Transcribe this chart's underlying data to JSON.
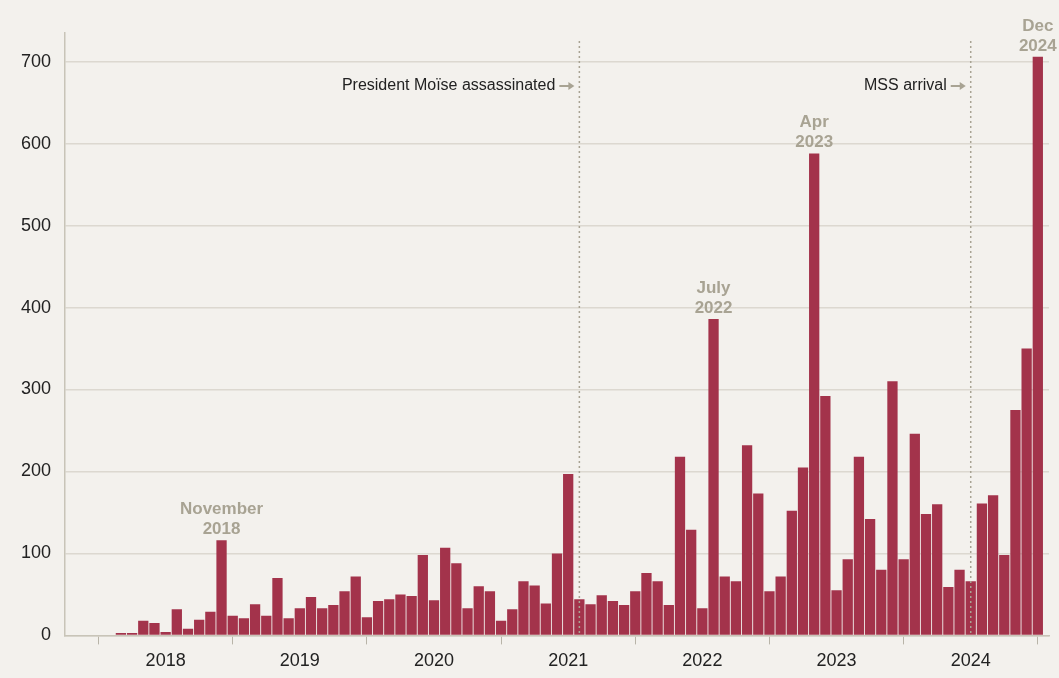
{
  "chart_data": {
    "type": "bar",
    "color": "#a3334b",
    "x": [
      "2018-02",
      "2018-03",
      "2018-04",
      "2018-05",
      "2018-06",
      "2018-07",
      "2018-08",
      "2018-09",
      "2018-10",
      "2018-11",
      "2018-12",
      "2019-01",
      "2019-02",
      "2019-03",
      "2019-04",
      "2019-05",
      "2019-06",
      "2019-07",
      "2019-08",
      "2019-09",
      "2019-10",
      "2019-11",
      "2019-12",
      "2020-01",
      "2020-02",
      "2020-03",
      "2020-04",
      "2020-05",
      "2020-06",
      "2020-07",
      "2020-08",
      "2020-09",
      "2020-10",
      "2020-11",
      "2020-12",
      "2021-01",
      "2021-02",
      "2021-03",
      "2021-04",
      "2021-05",
      "2021-06",
      "2021-07",
      "2021-08",
      "2021-09",
      "2021-10",
      "2021-11",
      "2021-12",
      "2022-01",
      "2022-02",
      "2022-03",
      "2022-04",
      "2022-05",
      "2022-06",
      "2022-07",
      "2022-08",
      "2022-09",
      "2022-10",
      "2022-11",
      "2022-12",
      "2023-01",
      "2023-02",
      "2023-03",
      "2023-04",
      "2023-05",
      "2023-06",
      "2023-07",
      "2023-08",
      "2023-09",
      "2023-10",
      "2023-11",
      "2023-12",
      "2024-01",
      "2024-02",
      "2024-03",
      "2024-04",
      "2024-05",
      "2024-06",
      "2024-07",
      "2024-08",
      "2024-09",
      "2024-10",
      "2024-11",
      "2024-12"
    ],
    "values": [
      3,
      3,
      18,
      15,
      4,
      32,
      8,
      19,
      29,
      116,
      24,
      21,
      38,
      24,
      70,
      21,
      33,
      47,
      33,
      37,
      54,
      72,
      22,
      42,
      44,
      50,
      48,
      98,
      43,
      107,
      88,
      33,
      60,
      54,
      18,
      32,
      66,
      61,
      39,
      100,
      197,
      44,
      38,
      49,
      42,
      37,
      54,
      76,
      66,
      37,
      218,
      129,
      33,
      386,
      72,
      66,
      232,
      173,
      54,
      72,
      152,
      205,
      588,
      292,
      55,
      93,
      218,
      142,
      80,
      310,
      93,
      246,
      148,
      160,
      59,
      80,
      66,
      161,
      171,
      98,
      275,
      350,
      706
    ],
    "xlim": [
      "2017-09",
      "2025-01"
    ],
    "xticks": [
      {
        "value": "2018-06",
        "label": "2018"
      },
      {
        "value": "2019-06",
        "label": "2019"
      },
      {
        "value": "2020-06",
        "label": "2020"
      },
      {
        "value": "2021-06",
        "label": "2021"
      },
      {
        "value": "2022-06",
        "label": "2022"
      },
      {
        "value": "2023-06",
        "label": "2023"
      },
      {
        "value": "2024-06",
        "label": "2024"
      }
    ],
    "ylim": [
      0,
      735
    ],
    "yticks": [
      0,
      100,
      200,
      300,
      400,
      500,
      600,
      700
    ],
    "grid": "y",
    "legend": false,
    "annotations": [
      {
        "text": "November 2018",
        "x": "2018-11",
        "y": 116
      },
      {
        "text": "July 2022",
        "x": "2022-07",
        "y": 386
      },
      {
        "text": "Apr 2023",
        "x": "2023-04",
        "y": 588
      },
      {
        "text": "Dec 2024",
        "x": "2024-12",
        "y": 706
      }
    ],
    "ref_lines": [
      {
        "axis": "x",
        "value": "2021-07",
        "label": "President Moïse assassinated",
        "color": "#a8a393",
        "line_style": "dotted"
      },
      {
        "axis": "x",
        "value": "2024-06",
        "label": "MSS arrival",
        "color": "#a8a393",
        "line_style": "dotted"
      }
    ]
  }
}
